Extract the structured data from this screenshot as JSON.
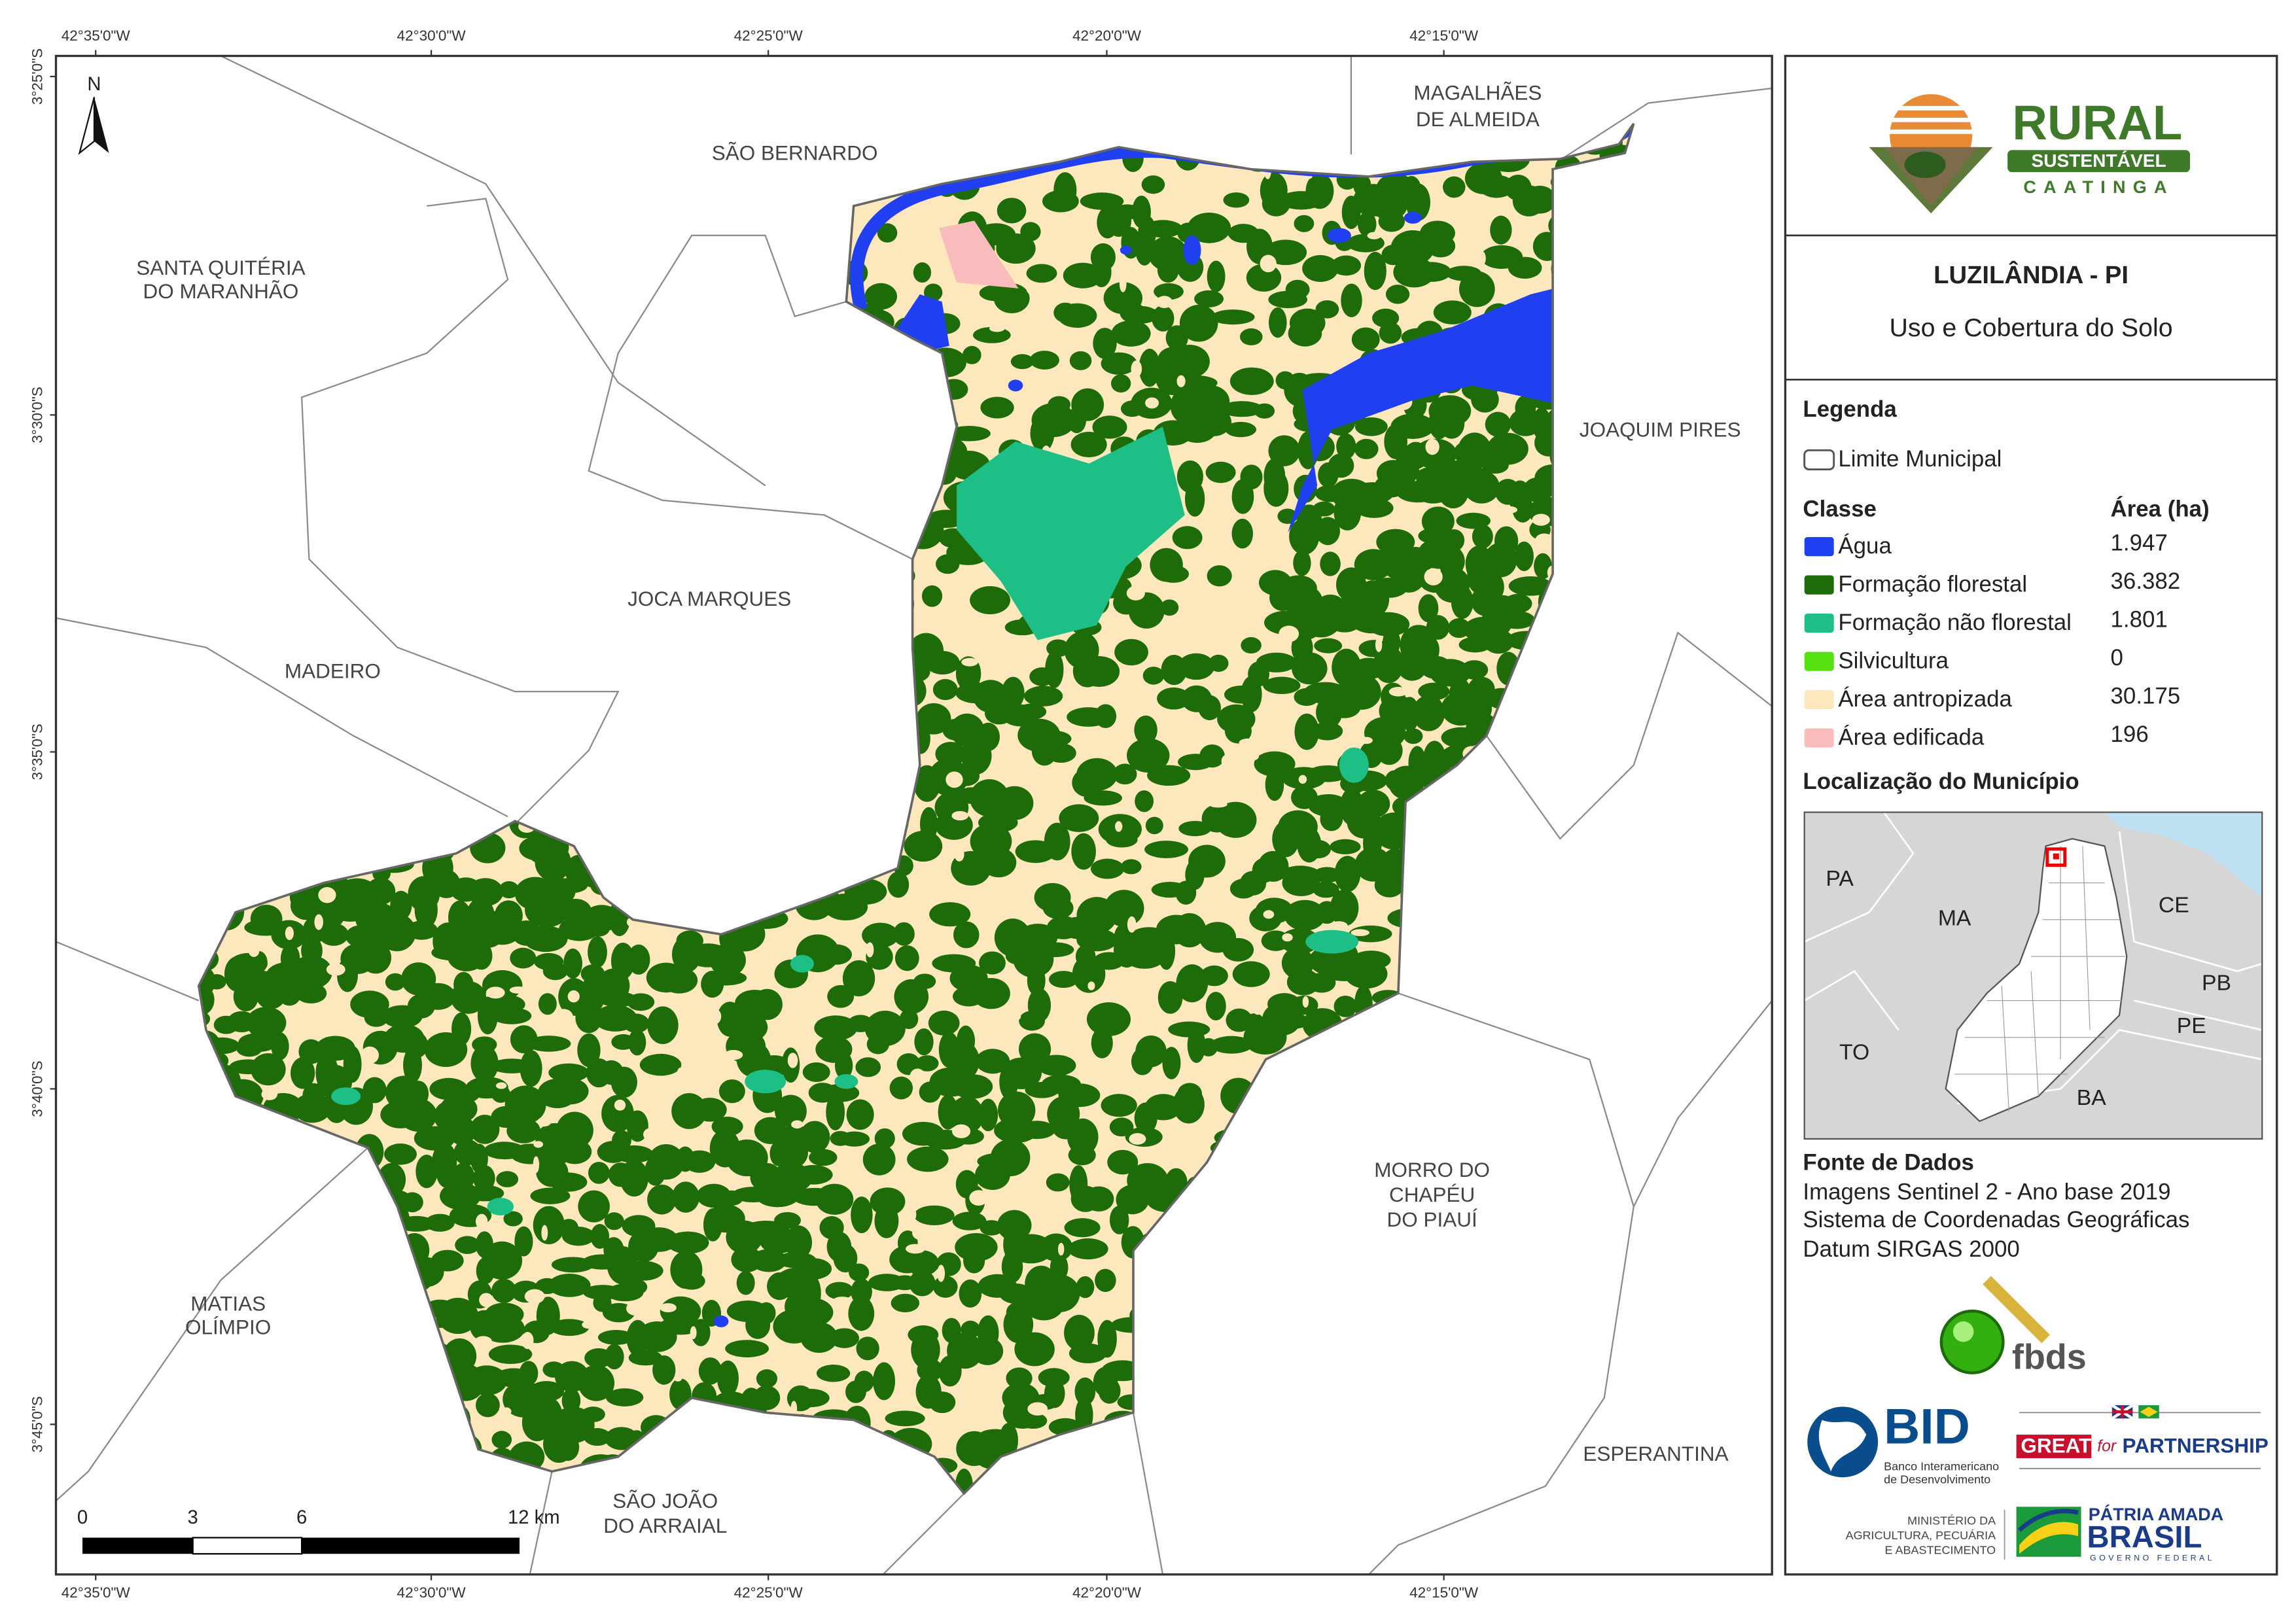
{
  "map": {
    "north": "N",
    "lon_ticks": [
      "42°35'0\"W",
      "42°30'0\"W",
      "42°25'0\"W",
      "42°20'0\"W",
      "42°15'0\"W"
    ],
    "lat_ticks": [
      "3°25'0\"S",
      "3°30'0\"S",
      "3°35'0\"S",
      "3°40'0\"S",
      "3°45'0\"S"
    ],
    "neighbors": [
      [
        "SÃO BERNARDO"
      ],
      [
        "MAGALHÃES",
        "DE ALMEIDA"
      ],
      [
        "SANTA QUITÉRIA",
        "DO MARANHÃO"
      ],
      [
        "JOAQUIM PIRES"
      ],
      [
        "JOCA MARQUES"
      ],
      [
        "MADEIRO"
      ],
      [
        "MORRO DO",
        "CHAPÉU",
        "DO PIAUÍ"
      ],
      [
        "MATIAS",
        "OLÍMPIO"
      ],
      [
        "SÃO JOÃO",
        "DO ARRAIAL"
      ],
      [
        "ESPERANTINA"
      ]
    ],
    "scale": [
      "0",
      "3",
      "6",
      "12 km"
    ]
  },
  "panel": {
    "logo": {
      "line1": "RURAL",
      "line2": "SUSTENTÁVEL",
      "line3": "CAATINGA"
    },
    "title": "LUZILÂNDIA - PI",
    "subtitle": "Uso e Cobertura do Solo",
    "legend": {
      "heading": "Legenda",
      "boundary": "Limite Municipal",
      "class_header": "Classe",
      "area_header": "Área (ha)",
      "classes": [
        {
          "name": "Água",
          "color": "#1f3ff0",
          "area": "1.947"
        },
        {
          "name": "Formação florestal",
          "color": "#1e6b0a",
          "area": "36.382"
        },
        {
          "name": "Formação não florestal",
          "color": "#1dbf86",
          "area": "1.801"
        },
        {
          "name": "Silvicultura",
          "color": "#55e011",
          "area": "0"
        },
        {
          "name": "Área antropizada",
          "color": "#fce8bc",
          "area": "30.175"
        },
        {
          "name": "Área edificada",
          "color": "#f9bcbc",
          "area": "196"
        }
      ]
    },
    "location": {
      "heading": "Localização do Município",
      "states": [
        "PA",
        "MA",
        "CE",
        "PB",
        "PE",
        "TO",
        "BA"
      ]
    },
    "sources": {
      "heading": "Fonte de Dados",
      "lines": [
        "Imagens Sentinel 2 - Ano base 2019",
        "Sistema de Coordenadas Geográficas",
        "Datum SIRGAS 2000"
      ]
    },
    "logos": {
      "fbds": "fbds",
      "bid": "BID",
      "bid_sub": [
        "Banco Interamericano",
        "de Desenvolvimento"
      ],
      "great": "GREAT",
      "great_for": "for",
      "great_partnership": "PARTNERSHIP",
      "ministry": [
        "MINISTÉRIO DA",
        "AGRICULTURA, PECUÁRIA",
        "E ABASTECIMENTO"
      ],
      "brasil": [
        "PÁTRIA AMADA",
        "BRASIL",
        "GOVERNO FEDERAL"
      ]
    }
  }
}
